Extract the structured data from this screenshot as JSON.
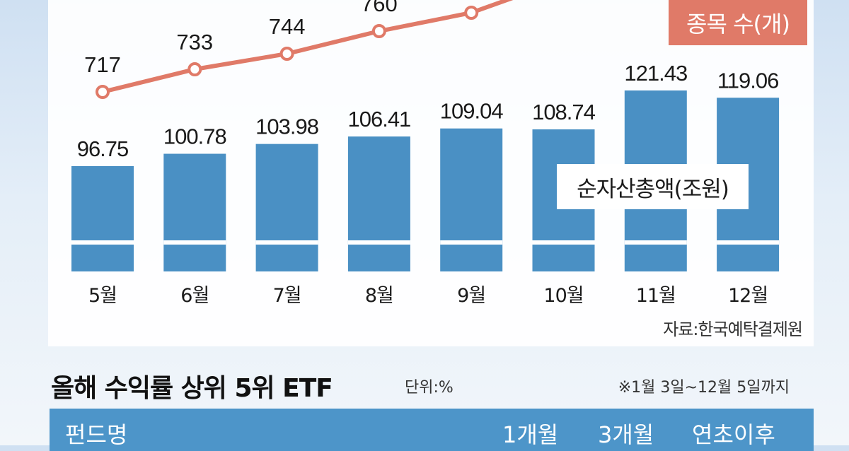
{
  "chart_data": {
    "type": "bar+line",
    "categories": [
      "5월",
      "6월",
      "7월",
      "8월",
      "9월",
      "10월",
      "11월",
      "12월"
    ],
    "bar_series": {
      "name": "순자산총액(조원)",
      "values": [
        96.75,
        100.78,
        103.98,
        106.41,
        109.04,
        108.74,
        121.43,
        119.06
      ]
    },
    "line_series": {
      "name": "종목 수(개)",
      "values": [
        717,
        733,
        744,
        760,
        null,
        null,
        null,
        null
      ],
      "labels": [
        "717",
        "733",
        "744",
        "760",
        "",
        "",
        "",
        ""
      ]
    },
    "colors": {
      "bar": "#4a90c4",
      "line": "#e07a68"
    }
  },
  "labels": {
    "count_badge": "종목 수(개)",
    "asset_label": "순자산총액(조원)",
    "source": "자료:한국예탁결제원"
  },
  "table": {
    "title": "올해 수익률 상위 5위 ETF",
    "unit": "단위:%",
    "period": "※1월 3일~12월 5일까지",
    "headers": {
      "name": "펀드명",
      "m1": "1개월",
      "m3": "3개월",
      "ytd": "연초이후"
    }
  }
}
